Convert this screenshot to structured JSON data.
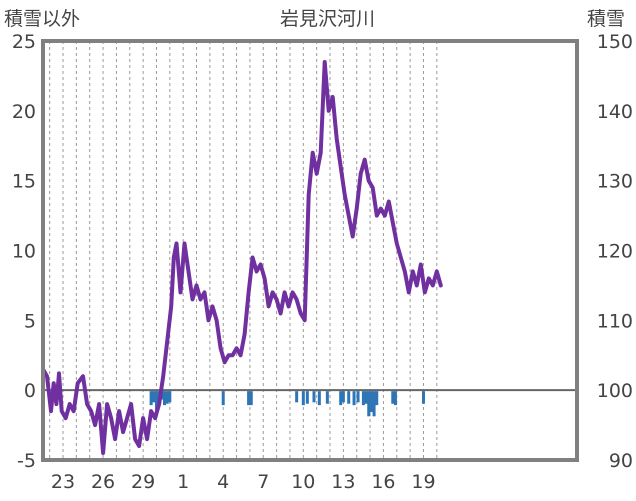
{
  "chart_data": {
    "type": "line",
    "title": "岩見沢河川",
    "left_axis_label": "積雪以外",
    "right_axis_label": "積雪",
    "left_ylim": [
      -5,
      25
    ],
    "left_yticks": [
      "25",
      "20",
      "15",
      "10",
      "5",
      "0",
      "-5"
    ],
    "right_ylim": [
      90,
      150
    ],
    "right_yticks": [
      "150",
      "140",
      "130",
      "120",
      "110",
      "100",
      "90"
    ],
    "xlim": [
      0,
      40
    ],
    "x_tick_labels": [
      "23",
      "26",
      "29",
      "1",
      "4",
      "7",
      "10",
      "13",
      "16",
      "19"
    ],
    "x_tick_positions": [
      1.5,
      4.5,
      7.5,
      10.5,
      13.5,
      16.5,
      19.5,
      22.5,
      25.5,
      28.5
    ],
    "grid": "vertical dashed",
    "colors": {
      "line": "#7030a0",
      "bars": "#2e75b6",
      "frame": "#808080",
      "zero_line": "#666666"
    },
    "series": [
      {
        "axis": "left",
        "x": [
          0,
          0.3,
          0.6,
          0.8,
          1.0,
          1.2,
          1.4,
          1.7,
          2.0,
          2.3,
          2.6,
          3.0,
          3.3,
          3.6,
          3.9,
          4.2,
          4.5,
          4.8,
          5.1,
          5.4,
          5.7,
          6.0,
          6.3,
          6.6,
          6.9,
          7.2,
          7.5,
          7.8,
          8.1,
          8.4,
          8.7,
          9.0,
          9.3,
          9.6,
          9.8,
          10.0,
          10.3,
          10.6,
          10.9,
          11.2,
          11.5,
          11.8,
          12.1,
          12.4,
          12.7,
          13.0,
          13.3,
          13.6,
          13.9,
          14.2,
          14.5,
          14.8,
          15.1,
          15.4,
          15.7,
          16.0,
          16.3,
          16.6,
          16.9,
          17.2,
          17.5,
          17.8,
          18.1,
          18.4,
          18.7,
          19.0,
          19.3,
          19.6,
          19.9,
          20.2,
          20.5,
          20.8,
          21.1,
          21.4,
          21.7,
          22.0,
          22.3,
          22.6,
          22.9,
          23.2,
          23.5,
          23.8,
          24.1,
          24.4,
          24.7,
          25.0,
          25.3,
          25.6,
          25.9,
          26.2,
          26.5,
          26.8,
          27.1,
          27.4,
          27.7,
          28.0,
          28.3,
          28.6,
          28.9,
          29.2,
          29.5,
          29.8
        ],
        "values": [
          1.5,
          1.0,
          -1.5,
          0.5,
          -1.0,
          1.2,
          -1.5,
          -2.0,
          -1.0,
          -1.5,
          0.5,
          1.0,
          -1.0,
          -1.5,
          -2.5,
          -1.0,
          -4.5,
          -1.0,
          -2.0,
          -3.5,
          -1.5,
          -3.0,
          -2.0,
          -1.0,
          -3.5,
          -4.0,
          -2.0,
          -3.5,
          -1.5,
          -2.0,
          -1.0,
          1.0,
          3.5,
          6.0,
          9.5,
          10.5,
          7.0,
          10.5,
          8.5,
          6.5,
          7.5,
          6.5,
          7.0,
          5.0,
          6.0,
          5.0,
          3.0,
          2.0,
          2.5,
          2.5,
          3.0,
          2.5,
          4.0,
          7.0,
          9.5,
          8.5,
          9.0,
          8.0,
          6.0,
          7.0,
          6.5,
          5.5,
          7.0,
          6.0,
          7.0,
          6.5,
          5.5,
          5.0,
          14.0,
          17.0,
          15.5,
          17.0,
          23.5,
          20.0,
          21.0,
          18.0,
          16.0,
          14.0,
          12.5,
          11.0,
          13.0,
          15.5,
          16.5,
          15.0,
          14.5,
          12.5,
          13.0,
          12.5,
          13.5,
          12.0,
          10.5,
          9.5,
          8.5,
          7.0,
          8.5,
          7.5,
          9.0,
          7.0,
          8.0,
          7.5,
          8.5,
          7.5
        ]
      }
    ],
    "bars": {
      "axis": "left",
      "x": [
        8.1,
        8.3,
        8.5,
        8.7,
        8.9,
        9.1,
        9.3,
        9.5,
        13.5,
        15.4,
        15.6,
        19.0,
        19.5,
        19.8,
        20.3,
        20.7,
        21.3,
        22.3,
        22.5,
        22.9,
        23.3,
        23.6,
        24.0,
        24.2,
        24.4,
        24.6,
        24.8,
        25.0,
        26.2,
        26.4,
        28.5
      ],
      "values": [
        -1.0,
        -0.8,
        -1.8,
        -0.9,
        -0.6,
        -1.0,
        -0.9,
        -0.8,
        -1.0,
        -1.0,
        -1.0,
        -0.8,
        -1.0,
        -0.9,
        -0.8,
        -1.0,
        -0.9,
        -1.0,
        -0.8,
        -0.9,
        -1.0,
        -0.8,
        -1.0,
        -0.9,
        -1.8,
        -1.5,
        -1.8,
        -1.0,
        -0.9,
        -1.0,
        -0.9
      ]
    }
  }
}
